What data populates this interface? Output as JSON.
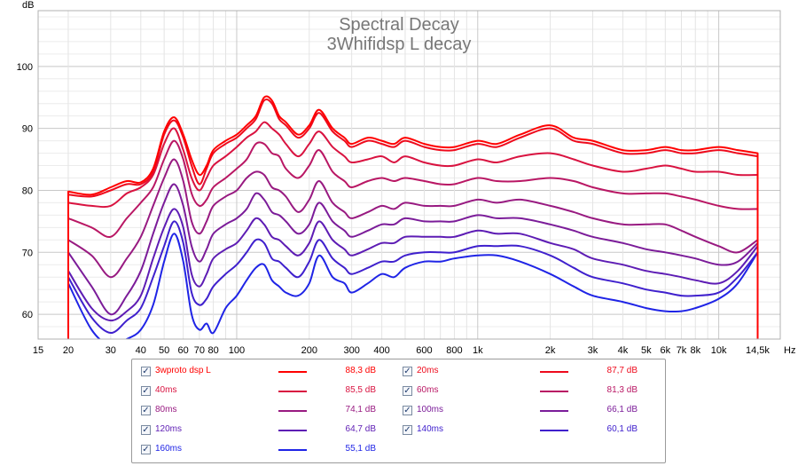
{
  "chart_data": {
    "type": "line",
    "title": "Spectral Decay",
    "subtitle": "3Whifidsp L decay",
    "ylabel": "dB",
    "xunit": "Hz",
    "xscale": "log",
    "xlim": [
      15,
      18000
    ],
    "ylim": [
      56,
      109
    ],
    "grid": true,
    "legend_position": "bottom-center",
    "y_ticks": [
      60,
      70,
      80,
      90,
      100
    ],
    "x_ticks": [
      {
        "v": 15,
        "label": "15"
      },
      {
        "v": 20,
        "label": "20"
      },
      {
        "v": 30,
        "label": "30"
      },
      {
        "v": 40,
        "label": "40"
      },
      {
        "v": 50,
        "label": "50"
      },
      {
        "v": 60,
        "label": "60"
      },
      {
        "v": 70,
        "label": "70"
      },
      {
        "v": 80,
        "label": "80"
      },
      {
        "v": 100,
        "label": "100"
      },
      {
        "v": 200,
        "label": "200"
      },
      {
        "v": 300,
        "label": "300"
      },
      {
        "v": 400,
        "label": "400"
      },
      {
        "v": 600,
        "label": "600"
      },
      {
        "v": 800,
        "label": "800"
      },
      {
        "v": 1000,
        "label": "1k"
      },
      {
        "v": 2000,
        "label": "2k"
      },
      {
        "v": 3000,
        "label": "3k"
      },
      {
        "v": 4000,
        "label": "4k"
      },
      {
        "v": 5000,
        "label": "5k"
      },
      {
        "v": 6000,
        "label": "6k"
      },
      {
        "v": 7000,
        "label": "7k"
      },
      {
        "v": 8000,
        "label": "8k"
      },
      {
        "v": 10000,
        "label": "10k"
      },
      {
        "v": 14500,
        "label": "14,5k"
      }
    ],
    "x": [
      20,
      25,
      30,
      35,
      40,
      45,
      50,
      55,
      60,
      65,
      70,
      75,
      80,
      90,
      100,
      110,
      120,
      130,
      140,
      150,
      160,
      180,
      200,
      220,
      250,
      280,
      300,
      350,
      400,
      450,
      500,
      600,
      700,
      800,
      1000,
      1200,
      1500,
      2000,
      2500,
      3000,
      4000,
      5000,
      6000,
      7000,
      8000,
      10000,
      12000,
      14500
    ],
    "series": [
      {
        "name": "3wproto dsp L",
        "value_label": "88,3 dB",
        "color": "#ff0000",
        "values": [
          79.8,
          79.3,
          80.5,
          81.5,
          81.3,
          83.5,
          89.5,
          91.8,
          89,
          85,
          82.5,
          84,
          86.5,
          88,
          89,
          90.5,
          92,
          95,
          94.5,
          92,
          91,
          89,
          90.5,
          93,
          90,
          88.5,
          87.5,
          88.5,
          88,
          87.5,
          88.5,
          87.5,
          87,
          87,
          88,
          87.5,
          89,
          90.5,
          88.5,
          88,
          86.5,
          86.5,
          87,
          86.5,
          86.5,
          87,
          86.5,
          86
        ]
      },
      {
        "name": "20ms",
        "value_label": "87,7 dB",
        "color": "#ee0a1c",
        "values": [
          79.3,
          79,
          80,
          81,
          81,
          83,
          89,
          91.3,
          88.5,
          84,
          81,
          83.5,
          86,
          87.5,
          88.5,
          90,
          91.5,
          94.5,
          94,
          91.5,
          90.5,
          88.5,
          90,
          92.5,
          89.5,
          88,
          87,
          88,
          87.5,
          87,
          88,
          87,
          86.5,
          86.5,
          87.5,
          87,
          88.5,
          90,
          88,
          87.5,
          86,
          86,
          86.5,
          86,
          86,
          86.5,
          86,
          85.5
        ]
      },
      {
        "name": "40ms",
        "value_label": "85,5 dB",
        "color": "#d91340",
        "values": [
          78,
          77.5,
          77.5,
          79.5,
          80.5,
          82.5,
          87.5,
          90,
          86.5,
          82,
          80,
          82,
          84,
          85.5,
          87,
          88.5,
          89.5,
          91,
          90,
          89,
          87.5,
          85.5,
          87.5,
          89.5,
          87,
          85.5,
          84.5,
          85,
          85.5,
          84.5,
          85.5,
          84.5,
          84,
          84,
          85,
          84.5,
          85.5,
          86,
          85,
          84,
          83,
          83.5,
          84,
          83.5,
          83,
          83,
          82.5,
          82.5
        ]
      },
      {
        "name": "60ms",
        "value_label": "81,3 dB",
        "color": "#b91764",
        "values": [
          75.5,
          74,
          72.5,
          75.5,
          78,
          80.5,
          85,
          88,
          85,
          79.5,
          77.5,
          78.5,
          80.5,
          82,
          83.5,
          85,
          87.5,
          87.5,
          86,
          85.5,
          83.5,
          82,
          84,
          86.5,
          83,
          81.5,
          80.5,
          81.5,
          82,
          81.5,
          82,
          81.5,
          81,
          81,
          82,
          81.5,
          81.5,
          82,
          81.5,
          80.5,
          79.5,
          79.5,
          79.5,
          79,
          78.5,
          77.5,
          77,
          77
        ]
      },
      {
        "name": "80ms",
        "value_label": "74,1 dB",
        "color": "#981a81",
        "values": [
          72,
          69.5,
          66,
          69,
          72.5,
          77.5,
          82,
          85,
          81.5,
          75,
          73,
          75,
          77.5,
          79,
          80,
          82,
          83,
          82.5,
          80.5,
          80,
          79,
          76.5,
          78.5,
          81.5,
          78,
          76.5,
          75.5,
          76.5,
          77.5,
          77,
          78,
          77.5,
          77.5,
          77.5,
          78.5,
          78,
          78.5,
          77.5,
          76.5,
          75.5,
          74.5,
          74.5,
          74.5,
          73.5,
          72.5,
          71,
          70,
          72
        ]
      },
      {
        "name": "100ms",
        "value_label": "66,1 dB",
        "color": "#7b1c99",
        "values": [
          70,
          64.5,
          60,
          63,
          67,
          73,
          78,
          81,
          77.5,
          71,
          68.5,
          70.5,
          73,
          74.5,
          75.5,
          77,
          79.5,
          78.5,
          76.5,
          76,
          75,
          73,
          74.5,
          78,
          75,
          73.5,
          72.5,
          73.5,
          74.5,
          74.5,
          75.5,
          75,
          75,
          75,
          76,
          75.5,
          75.5,
          74.5,
          73.5,
          72.5,
          71.5,
          70.5,
          70,
          69.5,
          69,
          68,
          68.5,
          71.5
        ]
      },
      {
        "name": "120ms",
        "value_label": "64,7 dB",
        "color": "#5d1cb4",
        "values": [
          67,
          61,
          59,
          60.5,
          63,
          69,
          74,
          77,
          74,
          66.5,
          64.5,
          66.5,
          69,
          70.5,
          71.5,
          73.5,
          75.5,
          74.5,
          72.5,
          72,
          71,
          69.5,
          71.5,
          75,
          72,
          70.5,
          69.5,
          70.5,
          71.5,
          71.5,
          72.5,
          72.5,
          72.5,
          72.5,
          73.5,
          73,
          73,
          71.5,
          70.5,
          69,
          68,
          67,
          66.5,
          66,
          65.5,
          65,
          67,
          71
        ]
      },
      {
        "name": "140ms",
        "value_label": "60,1 dB",
        "color": "#3f20cd",
        "values": [
          66,
          59.5,
          57,
          59,
          61,
          66,
          71,
          75,
          71.5,
          63.5,
          61.5,
          62.5,
          64.5,
          66.5,
          68,
          70,
          72,
          71.5,
          69,
          68.5,
          67.5,
          66,
          68.5,
          72,
          69,
          67.5,
          66.5,
          67.5,
          68.5,
          68.5,
          69.5,
          70,
          70,
          70,
          71,
          71,
          71,
          69.5,
          67.5,
          66,
          65,
          64,
          63.5,
          63,
          63,
          63.5,
          66,
          70
        ]
      },
      {
        "name": "160ms",
        "value_label": "55,1 dB",
        "color": "#1f24e6",
        "values": [
          65,
          57.5,
          55,
          56,
          57.5,
          61.5,
          68.5,
          73,
          68.5,
          60,
          57.5,
          58.5,
          57,
          61,
          63,
          65.5,
          67.5,
          68,
          65.5,
          64.5,
          63.5,
          63,
          65,
          69.5,
          66,
          65,
          63.5,
          65,
          66.5,
          66,
          67.5,
          68.5,
          68.5,
          69,
          69.5,
          69.5,
          68.5,
          66.5,
          64.5,
          63,
          62,
          61,
          60.5,
          60.5,
          61,
          62.5,
          65,
          70
        ]
      }
    ]
  }
}
